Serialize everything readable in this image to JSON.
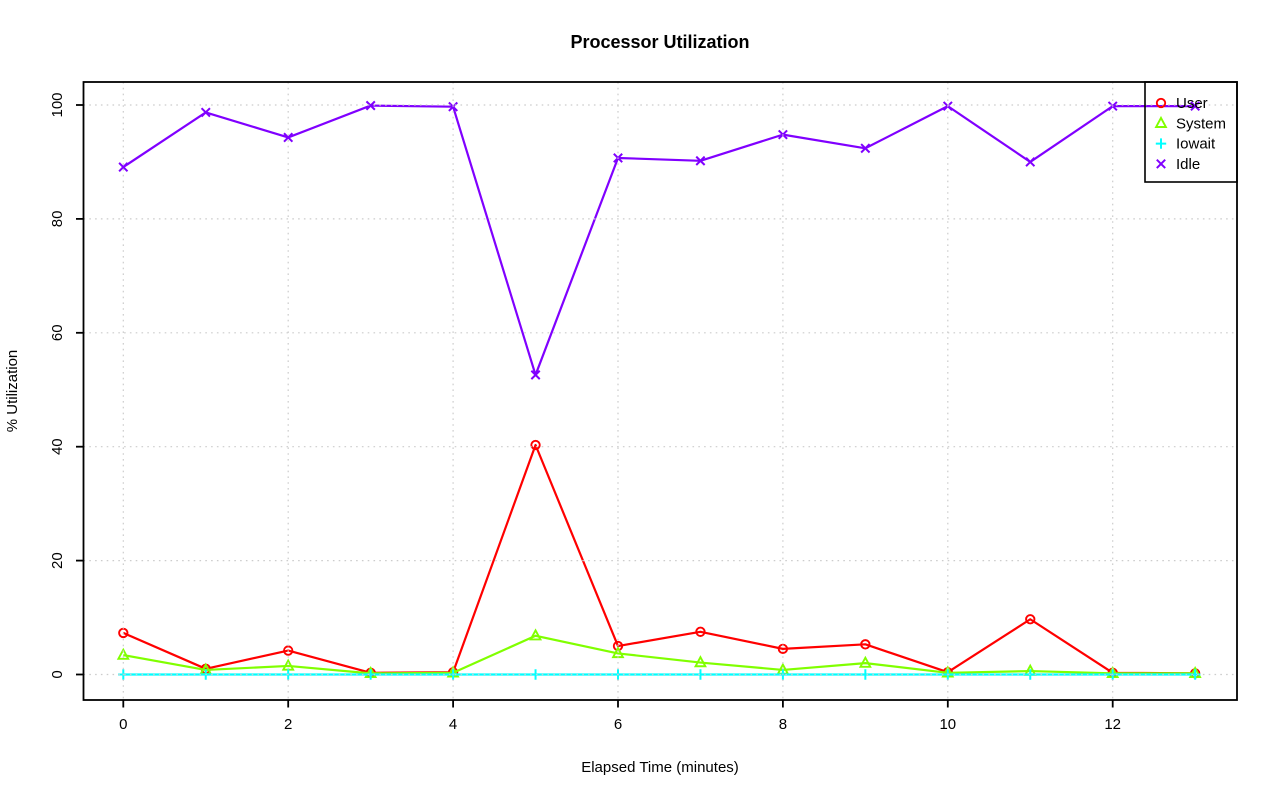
{
  "chart_data": {
    "type": "line",
    "title": "Processor Utilization",
    "xlabel": "Elapsed Time (minutes)",
    "ylabel": "% Utilization",
    "x": [
      0,
      1,
      2,
      3,
      4,
      5,
      6,
      7,
      8,
      9,
      10,
      11,
      12,
      13
    ],
    "series": [
      {
        "name": "User",
        "color": "#FF0000",
        "marker": "circle",
        "line_style": "solid",
        "values": [
          7.3,
          1.0,
          4.2,
          0.3,
          0.4,
          40.3,
          5.0,
          7.5,
          4.5,
          5.3,
          0.4,
          9.7,
          0.3,
          0.2
        ]
      },
      {
        "name": "System",
        "color": "#80FF00",
        "marker": "triangle",
        "line_style": "solid",
        "values": [
          3.4,
          0.8,
          1.5,
          0.2,
          0.3,
          6.8,
          3.7,
          2.1,
          0.8,
          2.0,
          0.3,
          0.6,
          0.2,
          0.2
        ]
      },
      {
        "name": "Iowait",
        "color": "#00FFFF",
        "marker": "plus",
        "line_style": "solid",
        "values": [
          0,
          0,
          0,
          0,
          0,
          0,
          0,
          0,
          0,
          0,
          0,
          0,
          0,
          0
        ]
      },
      {
        "name": "Idle",
        "color": "#8000FF",
        "marker": "x",
        "line_style": "solid",
        "values": [
          89.1,
          98.7,
          94.3,
          99.9,
          99.7,
          52.6,
          90.7,
          90.2,
          94.8,
          92.4,
          99.8,
          90.0,
          99.8,
          99.8
        ]
      }
    ],
    "x_ticks": [
      0,
      2,
      4,
      6,
      8,
      10,
      12
    ],
    "y_ticks": [
      0,
      20,
      40,
      60,
      80,
      100
    ],
    "xlim": [
      0,
      13
    ],
    "ylim": [
      0,
      100
    ],
    "grid": true,
    "grid_color": "#CCCCCC",
    "axis_color": "#000000",
    "legend_position": "top-right",
    "legend_labels": [
      "User",
      "System",
      "Iowait",
      "Idle"
    ]
  }
}
